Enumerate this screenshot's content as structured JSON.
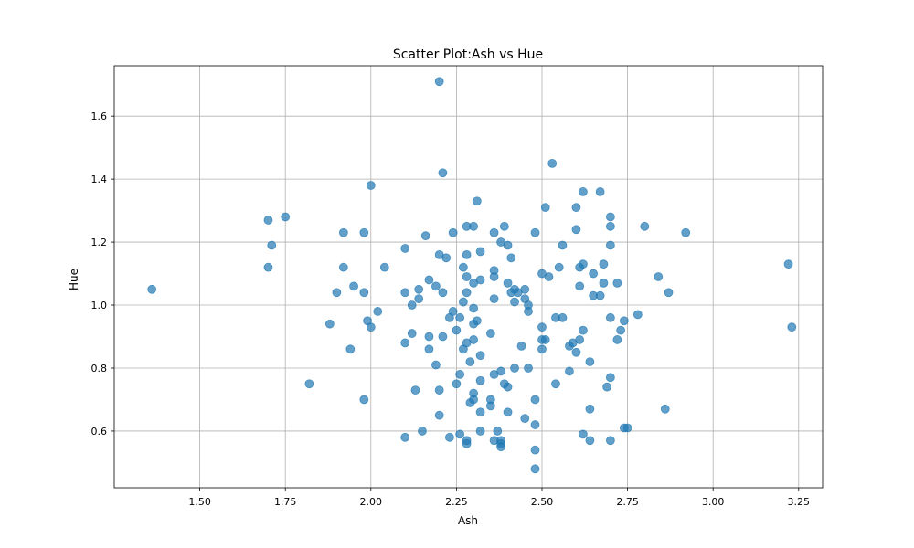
{
  "chart_data": {
    "type": "scatter",
    "title": "Scatter Plot:Ash vs Hue",
    "xlabel": "Ash",
    "ylabel": "Hue",
    "xlim": [
      1.25,
      3.32
    ],
    "ylim": [
      0.42,
      1.76
    ],
    "xticks": [
      1.5,
      1.75,
      2.0,
      2.25,
      2.5,
      2.75,
      3.0,
      3.25
    ],
    "xtick_labels": [
      "1.50",
      "1.75",
      "2.00",
      "2.25",
      "2.50",
      "2.75",
      "3.00",
      "3.25"
    ],
    "yticks": [
      0.6,
      0.8,
      1.0,
      1.2,
      1.4,
      1.6
    ],
    "ytick_labels": [
      "0.6",
      "0.8",
      "1.0",
      "1.2",
      "1.4",
      "1.6"
    ],
    "grid": true,
    "point_color": "#1f77b4",
    "point_alpha": 0.7,
    "points": [
      [
        1.36,
        1.05
      ],
      [
        1.7,
        1.27
      ],
      [
        1.7,
        1.12
      ],
      [
        1.71,
        1.19
      ],
      [
        1.75,
        1.28
      ],
      [
        1.82,
        0.75
      ],
      [
        1.88,
        0.94
      ],
      [
        1.9,
        1.04
      ],
      [
        1.92,
        1.23
      ],
      [
        1.92,
        1.12
      ],
      [
        1.94,
        0.86
      ],
      [
        1.95,
        1.06
      ],
      [
        1.98,
        1.23
      ],
      [
        1.98,
        1.04
      ],
      [
        1.98,
        0.7
      ],
      [
        1.99,
        0.95
      ],
      [
        2.0,
        1.38
      ],
      [
        2.0,
        0.93
      ],
      [
        2.02,
        0.98
      ],
      [
        2.04,
        1.12
      ],
      [
        2.1,
        1.18
      ],
      [
        2.1,
        1.04
      ],
      [
        2.1,
        0.88
      ],
      [
        2.1,
        0.58
      ],
      [
        2.12,
        1.0
      ],
      [
        2.12,
        0.91
      ],
      [
        2.13,
        0.73
      ],
      [
        2.14,
        1.05
      ],
      [
        2.14,
        1.02
      ],
      [
        2.15,
        0.6
      ],
      [
        2.16,
        1.22
      ],
      [
        2.17,
        1.08
      ],
      [
        2.17,
        0.9
      ],
      [
        2.17,
        0.86
      ],
      [
        2.19,
        1.06
      ],
      [
        2.19,
        0.81
      ],
      [
        2.2,
        1.71
      ],
      [
        2.2,
        1.16
      ],
      [
        2.2,
        0.73
      ],
      [
        2.2,
        0.65
      ],
      [
        2.21,
        1.42
      ],
      [
        2.21,
        1.04
      ],
      [
        2.21,
        0.9
      ],
      [
        2.22,
        1.15
      ],
      [
        2.23,
        0.96
      ],
      [
        2.23,
        0.58
      ],
      [
        2.24,
        1.23
      ],
      [
        2.24,
        0.98
      ],
      [
        2.25,
        0.92
      ],
      [
        2.25,
        0.75
      ],
      [
        2.26,
        0.96
      ],
      [
        2.26,
        0.78
      ],
      [
        2.26,
        0.59
      ],
      [
        2.27,
        1.12
      ],
      [
        2.27,
        1.01
      ],
      [
        2.27,
        0.86
      ],
      [
        2.28,
        1.25
      ],
      [
        2.28,
        1.16
      ],
      [
        2.28,
        1.09
      ],
      [
        2.28,
        1.04
      ],
      [
        2.28,
        0.88
      ],
      [
        2.28,
        0.57
      ],
      [
        2.28,
        0.56
      ],
      [
        2.29,
        0.82
      ],
      [
        2.29,
        0.69
      ],
      [
        2.3,
        1.25
      ],
      [
        2.3,
        1.07
      ],
      [
        2.3,
        0.99
      ],
      [
        2.3,
        0.94
      ],
      [
        2.3,
        0.89
      ],
      [
        2.3,
        0.72
      ],
      [
        2.3,
        0.7
      ],
      [
        2.31,
        1.33
      ],
      [
        2.31,
        0.95
      ],
      [
        2.32,
        1.17
      ],
      [
        2.32,
        1.08
      ],
      [
        2.32,
        0.84
      ],
      [
        2.32,
        0.76
      ],
      [
        2.32,
        0.66
      ],
      [
        2.32,
        0.6
      ],
      [
        2.35,
        0.91
      ],
      [
        2.35,
        0.7
      ],
      [
        2.35,
        0.68
      ],
      [
        2.36,
        1.23
      ],
      [
        2.36,
        1.11
      ],
      [
        2.36,
        1.09
      ],
      [
        2.36,
        1.02
      ],
      [
        2.36,
        0.78
      ],
      [
        2.36,
        0.57
      ],
      [
        2.37,
        0.6
      ],
      [
        2.38,
        1.2
      ],
      [
        2.38,
        0.79
      ],
      [
        2.38,
        0.57
      ],
      [
        2.38,
        0.56
      ],
      [
        2.38,
        0.55
      ],
      [
        2.39,
        1.25
      ],
      [
        2.39,
        0.75
      ],
      [
        2.4,
        1.19
      ],
      [
        2.4,
        1.07
      ],
      [
        2.4,
        0.74
      ],
      [
        2.4,
        0.66
      ],
      [
        2.41,
        1.15
      ],
      [
        2.41,
        1.04
      ],
      [
        2.42,
        1.05
      ],
      [
        2.42,
        1.01
      ],
      [
        2.42,
        0.8
      ],
      [
        2.43,
        1.04
      ],
      [
        2.44,
        0.87
      ],
      [
        2.45,
        1.05
      ],
      [
        2.45,
        1.02
      ],
      [
        2.45,
        0.64
      ],
      [
        2.46,
        1.0
      ],
      [
        2.46,
        0.98
      ],
      [
        2.46,
        0.8
      ],
      [
        2.48,
        1.23
      ],
      [
        2.48,
        0.7
      ],
      [
        2.48,
        0.62
      ],
      [
        2.48,
        0.54
      ],
      [
        2.48,
        0.48
      ],
      [
        2.5,
        1.1
      ],
      [
        2.5,
        0.93
      ],
      [
        2.5,
        0.89
      ],
      [
        2.5,
        0.86
      ],
      [
        2.51,
        1.31
      ],
      [
        2.51,
        0.89
      ],
      [
        2.52,
        1.09
      ],
      [
        2.53,
        1.45
      ],
      [
        2.54,
        0.96
      ],
      [
        2.54,
        0.75
      ],
      [
        2.55,
        1.12
      ],
      [
        2.56,
        1.19
      ],
      [
        2.56,
        0.96
      ],
      [
        2.58,
        0.87
      ],
      [
        2.58,
        0.79
      ],
      [
        2.59,
        0.88
      ],
      [
        2.6,
        1.31
      ],
      [
        2.6,
        1.24
      ],
      [
        2.6,
        0.85
      ],
      [
        2.61,
        1.12
      ],
      [
        2.61,
        1.06
      ],
      [
        2.61,
        0.89
      ],
      [
        2.62,
        1.36
      ],
      [
        2.62,
        1.13
      ],
      [
        2.62,
        0.92
      ],
      [
        2.62,
        0.59
      ],
      [
        2.64,
        0.82
      ],
      [
        2.64,
        0.67
      ],
      [
        2.64,
        0.57
      ],
      [
        2.65,
        1.1
      ],
      [
        2.65,
        1.03
      ],
      [
        2.67,
        1.36
      ],
      [
        2.67,
        1.03
      ],
      [
        2.68,
        1.13
      ],
      [
        2.68,
        1.07
      ],
      [
        2.69,
        0.74
      ],
      [
        2.7,
        1.28
      ],
      [
        2.7,
        1.25
      ],
      [
        2.7,
        1.19
      ],
      [
        2.7,
        0.96
      ],
      [
        2.7,
        0.77
      ],
      [
        2.7,
        0.57
      ],
      [
        2.72,
        1.07
      ],
      [
        2.72,
        0.89
      ],
      [
        2.73,
        0.92
      ],
      [
        2.74,
        0.95
      ],
      [
        2.74,
        0.61
      ],
      [
        2.75,
        0.61
      ],
      [
        2.78,
        0.97
      ],
      [
        2.8,
        1.25
      ],
      [
        2.84,
        1.09
      ],
      [
        2.86,
        0.67
      ],
      [
        2.87,
        1.04
      ],
      [
        2.92,
        1.23
      ],
      [
        3.22,
        1.13
      ],
      [
        3.23,
        0.93
      ]
    ]
  }
}
